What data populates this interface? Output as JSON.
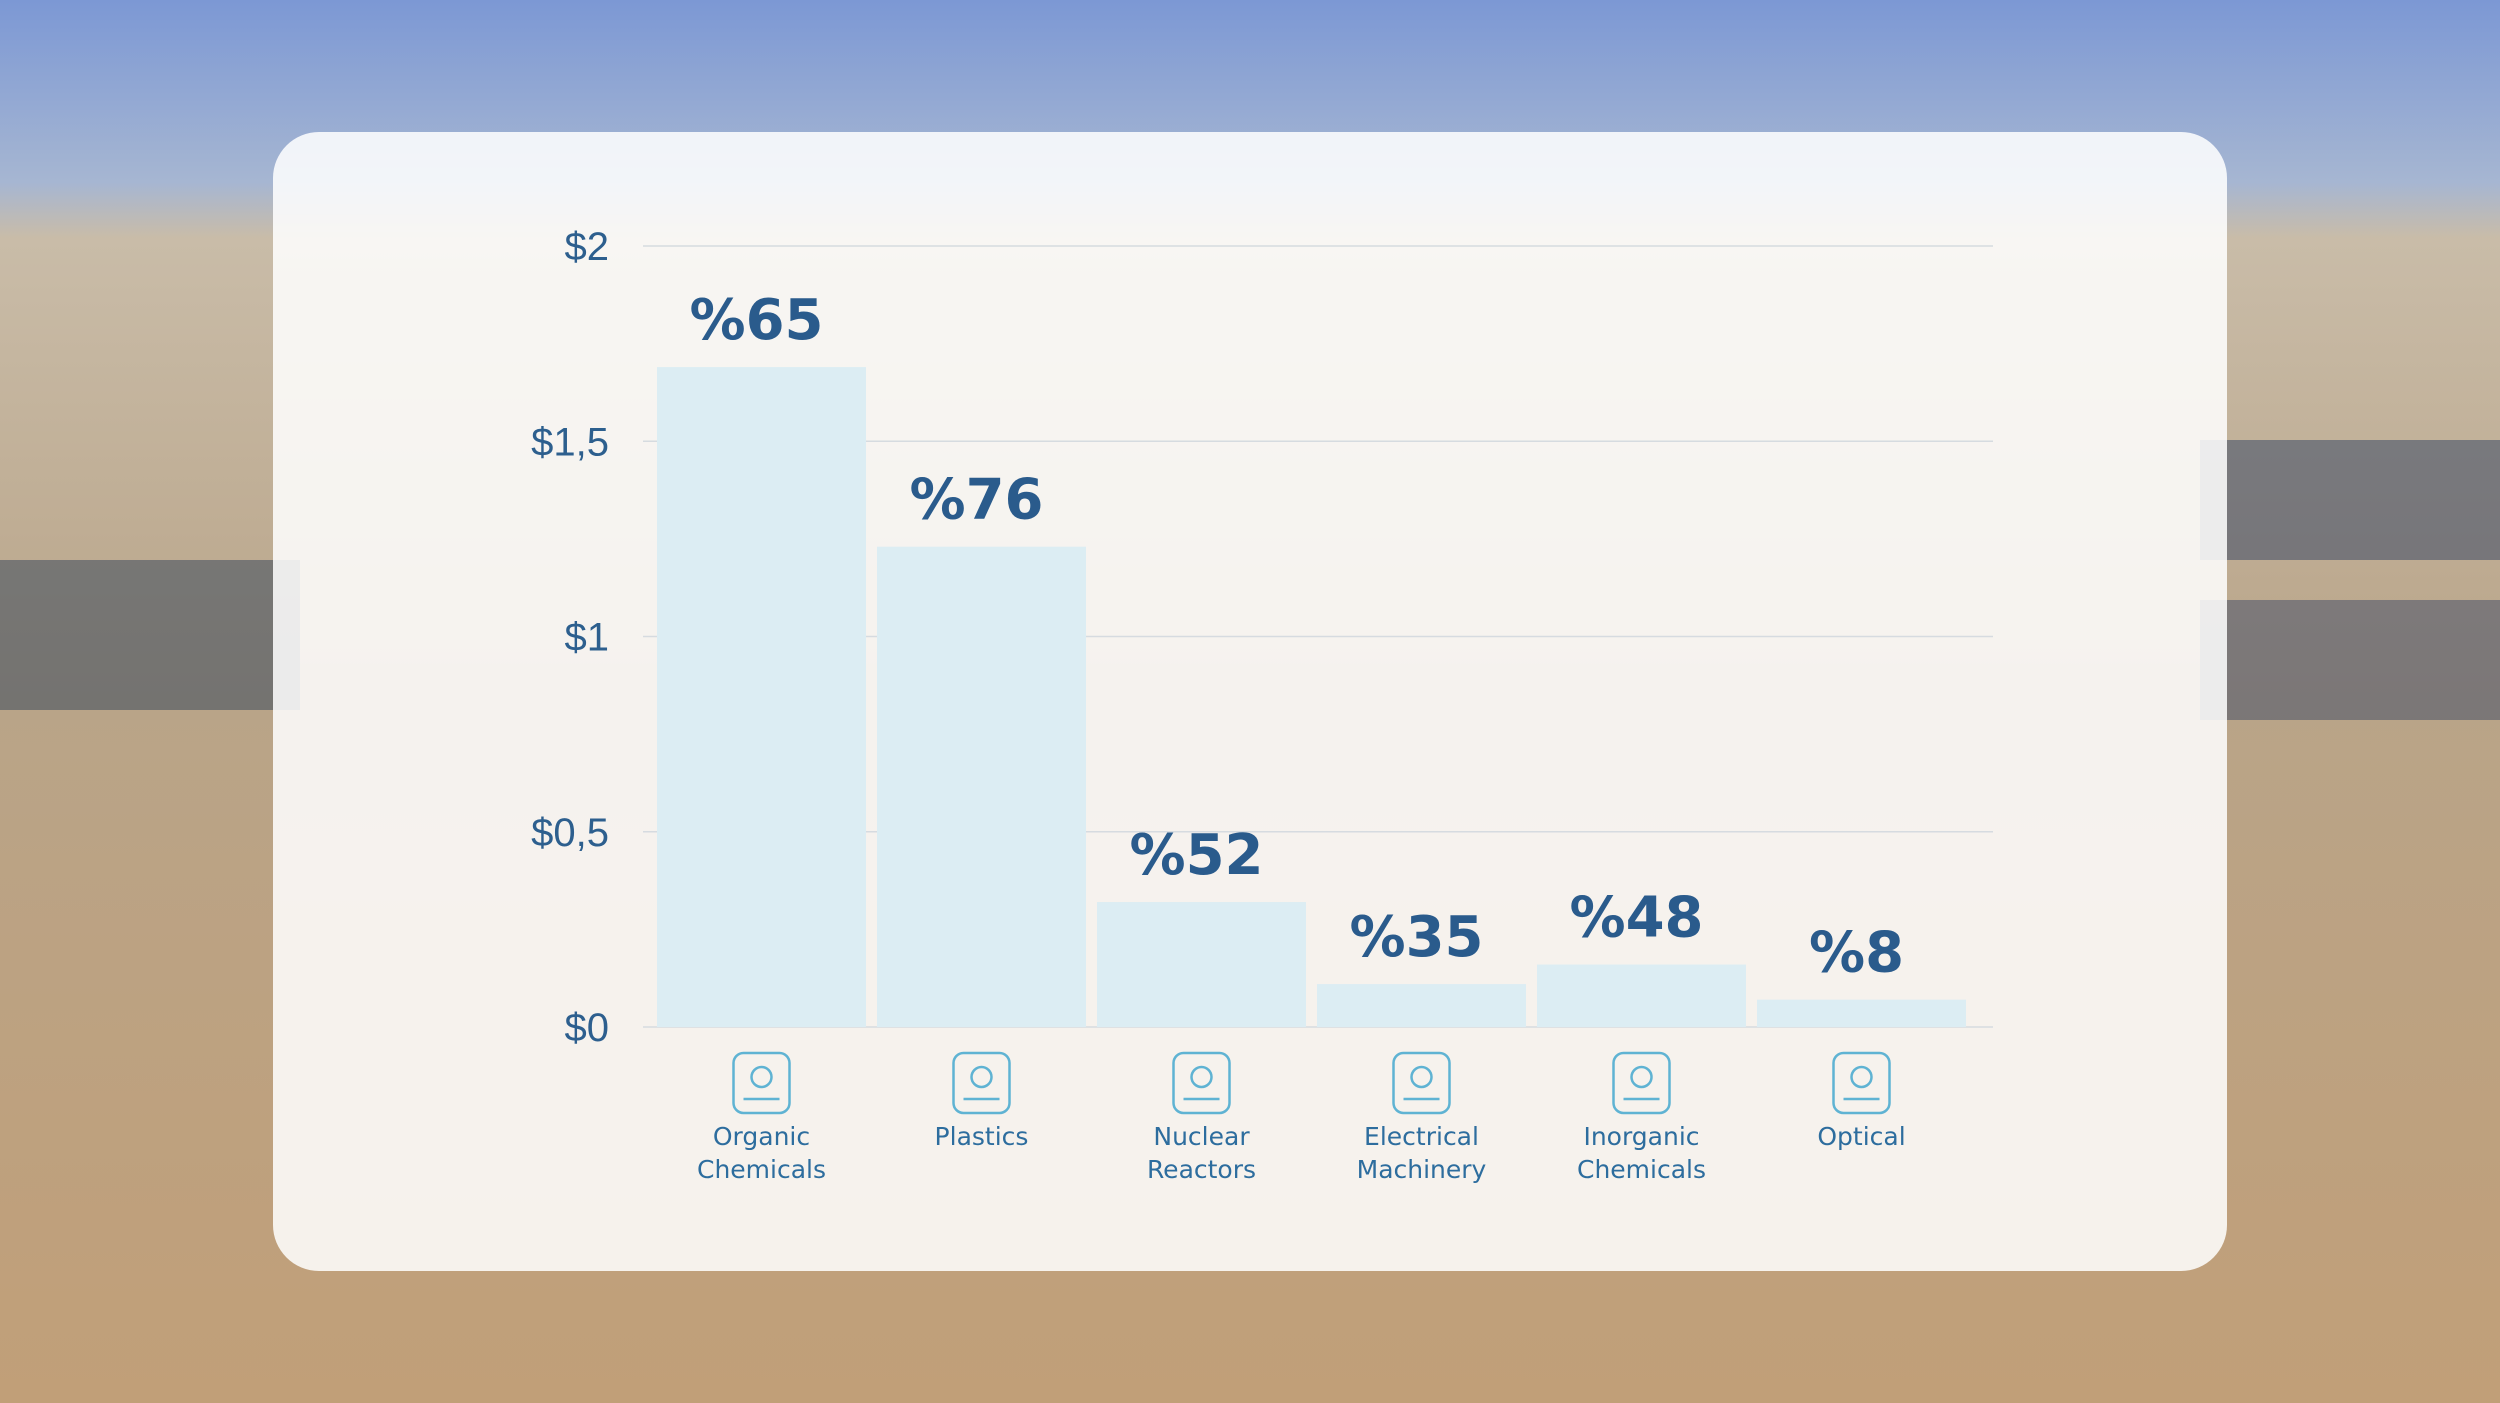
{
  "chart_data": {
    "type": "bar",
    "categories": [
      "Organic Chemicals",
      "Plastics",
      "Nuclear Reactors",
      "Electrical Machinery",
      "Inorganic Chemicals",
      "Optical"
    ],
    "values": [
      1.69,
      1.23,
      0.32,
      0.11,
      0.16,
      0.07
    ],
    "percent_labels": [
      "%65",
      "%76",
      "%52",
      "%35",
      "%48",
      "%8"
    ],
    "color": "#dcedf3",
    "ylim": [
      0,
      2
    ],
    "yticks": [
      {
        "value": 0,
        "label": "$0"
      },
      {
        "value": 0.5,
        "label": "$0,5"
      },
      {
        "value": 1,
        "label": "$1"
      },
      {
        "value": 1.5,
        "label": "$1,5"
      },
      {
        "value": 2,
        "label": "$2"
      }
    ],
    "grid": true
  }
}
